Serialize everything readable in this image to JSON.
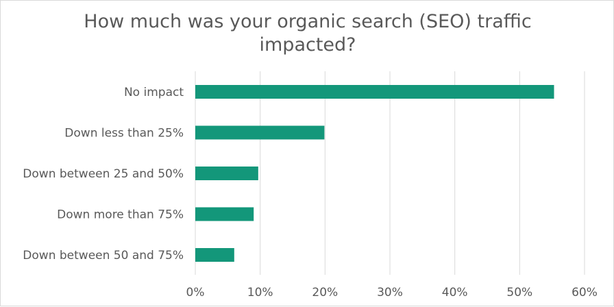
{
  "chart_data": {
    "type": "bar",
    "orientation": "horizontal",
    "title": "How much was your organic search (SEO) traffic impacted?",
    "xlabel": "",
    "ylabel": "",
    "categories": [
      "No impact",
      "Down less than 25%",
      "Down between 25 and 50%",
      "Down more than 75%",
      "Down between 50 and 75%"
    ],
    "values": [
      55.3,
      19.9,
      9.7,
      9.0,
      6.0
    ],
    "xlim": [
      0,
      60
    ],
    "x_ticks": [
      0,
      10,
      20,
      30,
      40,
      50,
      60
    ],
    "tick_suffix": "%",
    "grid": true,
    "legend": "none",
    "colors": {
      "bar": "#13977a",
      "grid": "#d9d9d9",
      "text": "#595959"
    }
  }
}
